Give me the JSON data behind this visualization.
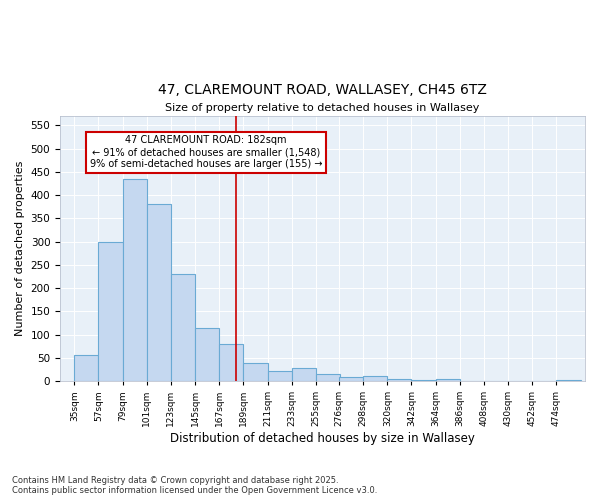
{
  "title": "47, CLAREMOUNT ROAD, WALLASEY, CH45 6TZ",
  "subtitle": "Size of property relative to detached houses in Wallasey",
  "xlabel": "Distribution of detached houses by size in Wallasey",
  "ylabel": "Number of detached properties",
  "bar_color": "#c5d8f0",
  "bar_edge_color": "#6aaad4",
  "background_color": "#e8f0f8",
  "vline_x": 182,
  "vline_color": "#cc0000",
  "annotation_title": "47 CLAREMOUNT ROAD: 182sqm",
  "annotation_line1": "← 91% of detached houses are smaller (1,548)",
  "annotation_line2": "9% of semi-detached houses are larger (155) →",
  "footer": "Contains HM Land Registry data © Crown copyright and database right 2025.\nContains public sector information licensed under the Open Government Licence v3.0.",
  "bin_labels": [
    "35sqm",
    "57sqm",
    "79sqm",
    "101sqm",
    "123sqm",
    "145sqm",
    "167sqm",
    "189sqm",
    "211sqm",
    "233sqm",
    "255sqm",
    "276sqm",
    "298sqm",
    "320sqm",
    "342sqm",
    "364sqm",
    "386sqm",
    "408sqm",
    "430sqm",
    "452sqm",
    "474sqm"
  ],
  "bin_starts": [
    35,
    57,
    79,
    101,
    123,
    145,
    167,
    189,
    211,
    233,
    255,
    276,
    298,
    320,
    342,
    364,
    386,
    408,
    430,
    452,
    474
  ],
  "bin_width": 22,
  "bar_heights": [
    55,
    300,
    435,
    380,
    230,
    115,
    80,
    38,
    22,
    27,
    16,
    9,
    10,
    4,
    3,
    4,
    0,
    0,
    0,
    0,
    3
  ],
  "ylim": [
    0,
    570
  ],
  "yticks": [
    0,
    50,
    100,
    150,
    200,
    250,
    300,
    350,
    400,
    450,
    500,
    550
  ]
}
